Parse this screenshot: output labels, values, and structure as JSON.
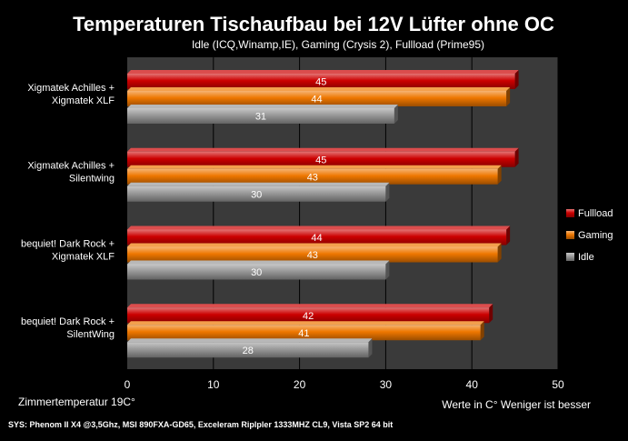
{
  "chart_data": {
    "type": "bar",
    "orientation": "horizontal",
    "title": "Temperaturen Tischaufbau bei 12V Lüfter ohne OC",
    "subtitle": "Idle (ICQ,Winamp,IE), Gaming (Crysis 2), Fullload (Prime95)",
    "categories": [
      [
        "Xigmatek Achilles +",
        "Xigmatek XLF"
      ],
      [
        "Xigmatek Achilles +",
        "Silentwing"
      ],
      [
        "bequiet! Dark Rock +",
        "Xigmatek XLF"
      ],
      [
        "bequiet! Dark Rock +",
        "SilentWing"
      ]
    ],
    "series": [
      {
        "name": "Fullload",
        "values": [
          45,
          45,
          44,
          42
        ],
        "color": "#cc0000"
      },
      {
        "name": "Gaming",
        "values": [
          44,
          43,
          43,
          41
        ],
        "color": "#ee7700"
      },
      {
        "name": "Idle",
        "values": [
          31,
          30,
          30,
          28
        ],
        "color": "#999999"
      }
    ],
    "xlim": [
      0,
      50
    ],
    "xticks": [
      0,
      10,
      20,
      30,
      40,
      50
    ],
    "grid": true,
    "legend_position": "right",
    "annotations": {
      "bottom_left": "Zimmertemperatur 19C°",
      "bottom_right": "Werte in C° Weniger ist besser",
      "footer": "SYS: Phenom II X4 @3,5Ghz, MSI 890FXA-GD65, Exceleram Riplpler 1333MHZ CL9, Vista SP2 64 bit"
    },
    "plot_background": "#3a3a3a",
    "grid_color": "#000000"
  }
}
